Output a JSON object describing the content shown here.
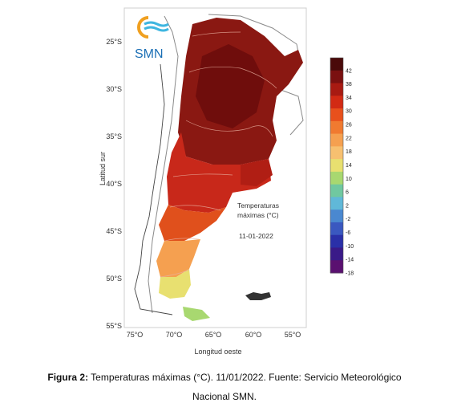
{
  "logo": {
    "text": "SMN",
    "colors": [
      "#f0a020",
      "#1b6fb5",
      "#3fb6e0"
    ]
  },
  "map": {
    "y_axis_label": "Latitud sur",
    "x_axis_label": "Longitud oeste",
    "lat_ticks": [
      "25°S",
      "30°S",
      "35°S",
      "40°S",
      "45°S",
      "50°S",
      "55°S"
    ],
    "lon_ticks": [
      "75°O",
      "70°O",
      "65°O",
      "60°O",
      "55°O"
    ],
    "annotation_title_1": "Temperaturas",
    "annotation_title_2": "máximas (°C)",
    "annotation_date": "11-01-2022"
  },
  "colorbar": {
    "labels": [
      "42",
      "38",
      "34",
      "30",
      "26",
      "22",
      "18",
      "14",
      "10",
      "6",
      "2",
      "-2",
      "-6",
      "-10",
      "-14",
      "-18"
    ],
    "colors": [
      "#4a0a0a",
      "#7a1010",
      "#a81a12",
      "#d22a14",
      "#e8501c",
      "#f07a30",
      "#f5a050",
      "#f7c070",
      "#e8e070",
      "#a8d870",
      "#70c8a0",
      "#60b8d8",
      "#4a88d0",
      "#3a58c0",
      "#2a30a8",
      "#3a1a88",
      "#5a1070"
    ]
  },
  "caption": {
    "bold": "Figura 2:",
    "text": " Temperaturas máximas (°C). 11/01/2022. Fuente: Servicio Meteorológico",
    "line2": "Nacional SMN."
  }
}
